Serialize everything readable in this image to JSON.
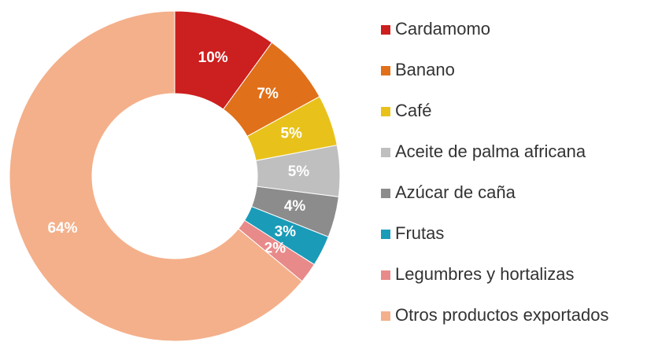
{
  "chart_data": {
    "type": "donut",
    "categories": [
      "Cardamomo",
      "Banano",
      "Café",
      "Aceite de palma africana",
      "Azúcar de caña",
      "Frutas",
      "Legumbres y hortalizas",
      "Otros productos exportados"
    ],
    "values": [
      10,
      7,
      5,
      5,
      4,
      3,
      2,
      64
    ],
    "value_labels": [
      "10%",
      "7%",
      "5%",
      "5%",
      "4%",
      "3%",
      "2%",
      "64%"
    ],
    "colors": [
      "#cc1f1f",
      "#e0701a",
      "#e8c21b",
      "#bfbfbf",
      "#8c8c8c",
      "#1a9bb8",
      "#e88a8a",
      "#f4b08a"
    ],
    "legend": "right"
  }
}
